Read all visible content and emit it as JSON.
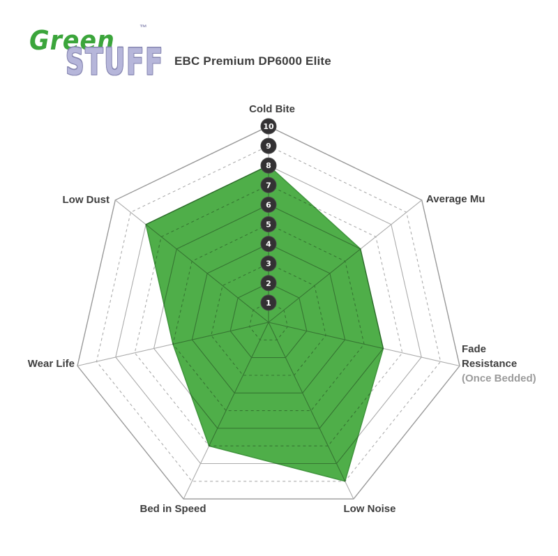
{
  "brand": {
    "word1": "Green",
    "word2": "STUFF",
    "trademark": "™",
    "green_color": "#3ba53b",
    "lavender_color": "#b6b6da"
  },
  "header": {
    "title": "EBC Premium DP6000 Elite"
  },
  "chart_data": {
    "type": "radar",
    "title": "EBC Premium DP6000 Elite",
    "axes": [
      {
        "label": "Cold Bite"
      },
      {
        "label": "Average Mu"
      },
      {
        "label": "Fade Resistance",
        "sublabel": "(Once Bedded)"
      },
      {
        "label": "Low Noise"
      },
      {
        "label": "Bed in Speed"
      },
      {
        "label": "Wear Life"
      },
      {
        "label": "Low Dust"
      }
    ],
    "values": [
      8,
      6,
      6,
      9,
      7,
      5,
      8
    ],
    "scale": {
      "min": 0,
      "max": 10,
      "ticks": [
        1,
        2,
        3,
        4,
        5,
        6,
        7,
        8,
        9,
        10
      ]
    },
    "grid": {
      "rings": 10,
      "solid_rings": "even values",
      "dashed_rings": "odd values",
      "spokes": 7
    },
    "legend_position": "none",
    "style": {
      "fill_color": "#4fae49",
      "fill_stroke_color": "#3f943c",
      "grid_color": "#ababab",
      "outer_ring_color": "#999999",
      "tick_circle_color": "#333133",
      "tick_text_color": "#ffffff"
    }
  }
}
